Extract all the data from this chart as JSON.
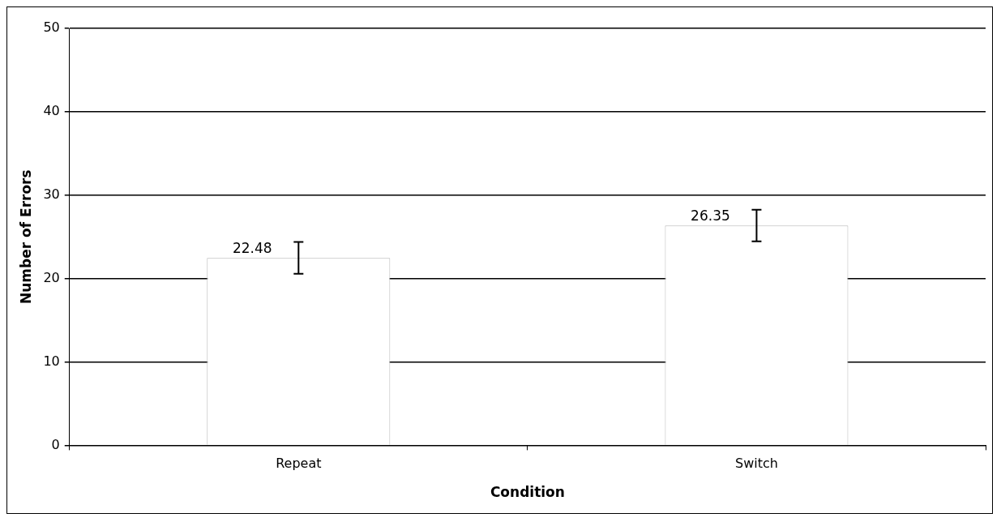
{
  "chart_data": {
    "type": "bar",
    "xlabel": "Condition",
    "ylabel": "Number of Errors",
    "categories": [
      "Repeat",
      "Switch"
    ],
    "values": [
      22.48,
      26.35
    ],
    "errors": [
      1.9,
      1.9
    ],
    "color": "#ffffff",
    "ylim": [
      0,
      50
    ],
    "yticks": [
      0,
      10,
      20,
      30,
      40,
      50
    ],
    "grid": "y",
    "data_labels": true,
    "legend": false
  }
}
